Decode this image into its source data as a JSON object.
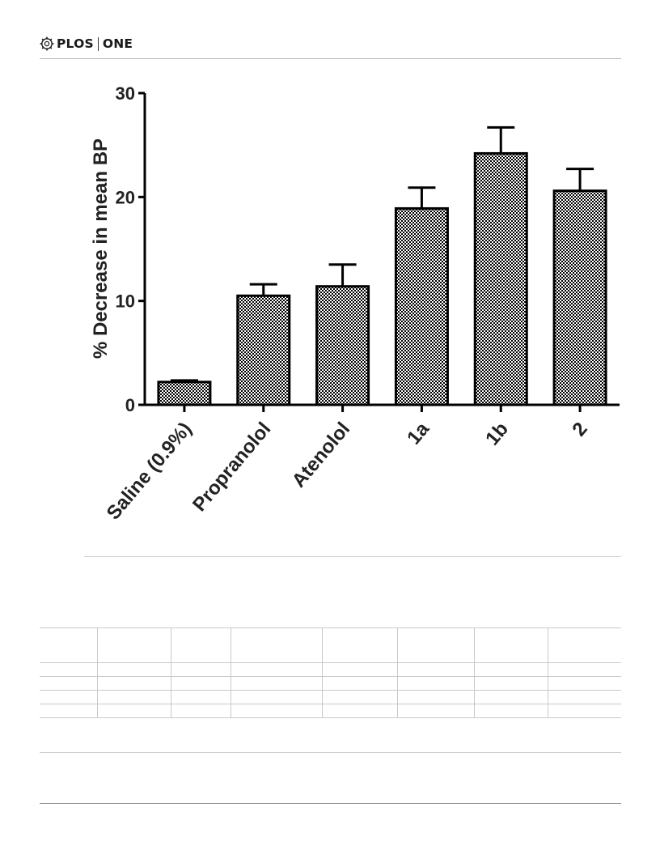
{
  "header": {
    "brand_left": "PLOS",
    "brand_right": "ONE",
    "logo_icon": "plos-gear-icon"
  },
  "chart_data": {
    "type": "bar",
    "title": "",
    "xlabel": "",
    "ylabel": "% Decrease in mean BP",
    "ylim": [
      0,
      30
    ],
    "yticks": [
      0,
      10,
      20,
      30
    ],
    "categories": [
      "Saline (0.9%)",
      "Propranolol",
      "Atenolol",
      "1a",
      "1b",
      "2"
    ],
    "values": [
      2.2,
      10.5,
      11.4,
      18.9,
      24.2,
      20.6
    ],
    "errors": [
      0.15,
      1.1,
      2.1,
      2.0,
      2.5,
      2.1
    ],
    "fill": "checkerboard",
    "colors": {
      "bar_fill": "#ffffff",
      "bar_pattern": "#000000",
      "axis": "#000000"
    },
    "grid": false
  },
  "table": {
    "columns": 8,
    "rows": 4
  }
}
